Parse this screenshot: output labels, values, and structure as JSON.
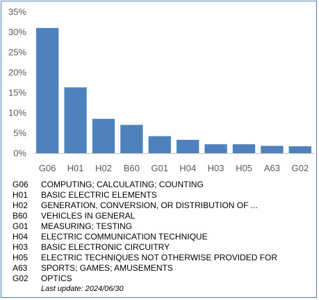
{
  "chart_data": {
    "type": "bar",
    "categories": [
      "G06",
      "H01",
      "H02",
      "B60",
      "G01",
      "H04",
      "H03",
      "H05",
      "A63",
      "G02"
    ],
    "values": [
      31.0,
      16.3,
      8.5,
      7.0,
      4.2,
      3.3,
      2.2,
      2.2,
      1.8,
      1.7
    ],
    "yticks": [
      "0%",
      "5%",
      "10%",
      "15%",
      "20%",
      "25%",
      "30%",
      "35%"
    ],
    "ylim": [
      0,
      35
    ],
    "grid": false,
    "bar_color": "#4f81bd"
  },
  "legend": [
    {
      "code": "G06",
      "desc": "COMPUTING; CALCULATING; COUNTING"
    },
    {
      "code": "H01",
      "desc": "BASIC ELECTRIC ELEMENTS"
    },
    {
      "code": "H02",
      "desc": "GENERATION, CONVERSION, OR DISTRIBUTION OF ..."
    },
    {
      "code": "B60",
      "desc": "VEHICLES IN GENERAL"
    },
    {
      "code": "G01",
      "desc": "MEASURING; TESTING"
    },
    {
      "code": "H04",
      "desc": "ELECTRIC COMMUNICATION TECHNIQUE"
    },
    {
      "code": "H03",
      "desc": "BASIC ELECTRONIC CIRCUITRY"
    },
    {
      "code": "H05",
      "desc": "ELECTRIC TECHNIQUES NOT OTHERWISE PROVIDED FOR"
    },
    {
      "code": "A63",
      "desc": "SPORTS; GAMES; AMUSEMENTS"
    },
    {
      "code": "G02",
      "desc": "OPTICS"
    }
  ],
  "footer": {
    "last_update": "Last update:  2024/06/30"
  },
  "colors": {
    "frame": "#4f81bd",
    "axis": "#bfbfbf"
  }
}
